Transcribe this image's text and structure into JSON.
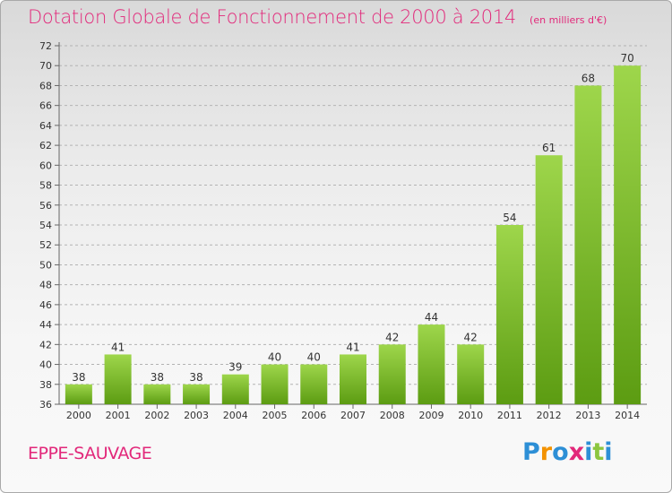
{
  "header": {
    "title": "Dotation Globale de Fonctionnement de 2000 à 2014",
    "subtitle": "(en milliers d'€)"
  },
  "commune": "EPPE-SAUVAGE",
  "logo": {
    "text": "Proxiti",
    "letters": [
      {
        "char": "P",
        "color": "#2d8fd6"
      },
      {
        "char": "r",
        "color": "#f39200"
      },
      {
        "char": "o",
        "color": "#2d8fd6"
      },
      {
        "char": "x",
        "color": "#e2287a"
      },
      {
        "char": "i",
        "color": "#2d8fd6"
      },
      {
        "char": "t",
        "color": "#8cc63f"
      },
      {
        "char": "i",
        "color": "#2d8fd6"
      }
    ]
  },
  "colors": {
    "title": "#e2287a",
    "bar_light": "#9ed64b",
    "bar_dark": "#5c9c12",
    "grid": "#b3b3b3"
  },
  "chart_data": {
    "type": "bar",
    "categories": [
      "2000",
      "2001",
      "2002",
      "2003",
      "2004",
      "2005",
      "2006",
      "2007",
      "2008",
      "2009",
      "2010",
      "2011",
      "2012",
      "2013",
      "2014"
    ],
    "values": [
      38,
      41,
      38,
      38,
      39,
      40,
      40,
      41,
      42,
      44,
      42,
      54,
      61,
      68,
      70
    ],
    "ylim": [
      36,
      72
    ],
    "ytick_step": 2,
    "data_labels": true,
    "grid": true
  }
}
